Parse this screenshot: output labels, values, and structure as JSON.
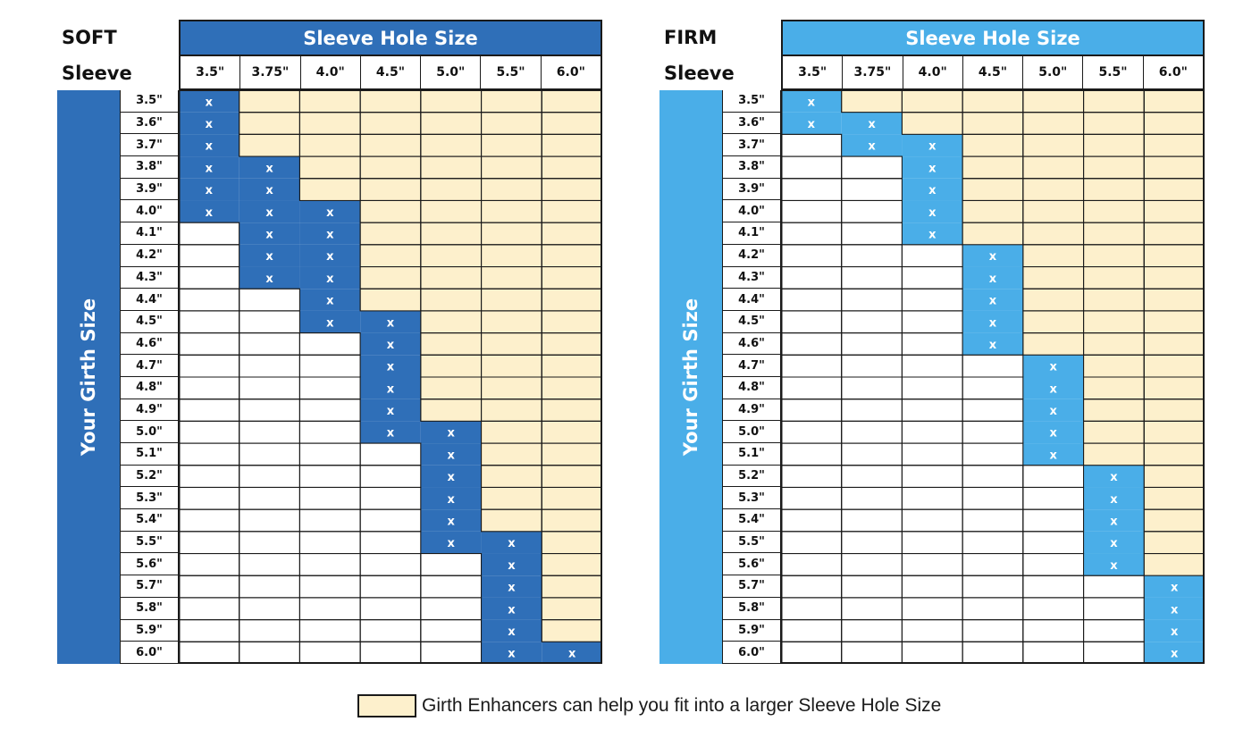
{
  "chart_data": [
    {
      "type": "table",
      "id": "soft",
      "title_line1": "SOFT",
      "title_line2": "Sleeve",
      "column_header": "Sleeve Hole Size",
      "row_header": "Your Girth Size",
      "columns": [
        "3.5\"",
        "3.75\"",
        "4.0\"",
        "4.5\"",
        "5.0\"",
        "5.5\"",
        "6.0\""
      ],
      "rows": [
        "3.5\"",
        "3.6\"",
        "3.7\"",
        "3.8\"",
        "3.9\"",
        "4.0\"",
        "4.1\"",
        "4.2\"",
        "4.3\"",
        "4.4\"",
        "4.5\"",
        "4.6\"",
        "4.7\"",
        "4.8\"",
        "4.9\"",
        "5.0\"",
        "5.1\"",
        "5.2\"",
        "5.3\"",
        "5.4\"",
        "5.5\"",
        "5.6\"",
        "5.7\"",
        "5.8\"",
        "5.9\"",
        "6.0\""
      ],
      "accent": "#2f6fb8",
      "fit_marks": [
        [
          0
        ],
        [
          0
        ],
        [
          0
        ],
        [
          0,
          1
        ],
        [
          0,
          1
        ],
        [
          0,
          1,
          2
        ],
        [
          1,
          2
        ],
        [
          1,
          2
        ],
        [
          1,
          2
        ],
        [
          2
        ],
        [
          2,
          3
        ],
        [
          3
        ],
        [
          3
        ],
        [
          3
        ],
        [
          3
        ],
        [
          3,
          4
        ],
        [
          4
        ],
        [
          4
        ],
        [
          4
        ],
        [
          4
        ],
        [
          4,
          5
        ],
        [
          5
        ],
        [
          5
        ],
        [
          5
        ],
        [
          5
        ],
        [
          5,
          6
        ]
      ],
      "enhancer_cells": [
        [
          1,
          2,
          3,
          4,
          5,
          6
        ],
        [
          1,
          2,
          3,
          4,
          5,
          6
        ],
        [
          1,
          2,
          3,
          4,
          5,
          6
        ],
        [
          2,
          3,
          4,
          5,
          6
        ],
        [
          2,
          3,
          4,
          5,
          6
        ],
        [
          3,
          4,
          5,
          6
        ],
        [
          3,
          4,
          5,
          6
        ],
        [
          3,
          4,
          5,
          6
        ],
        [
          3,
          4,
          5,
          6
        ],
        [
          3,
          4,
          5,
          6
        ],
        [
          4,
          5,
          6
        ],
        [
          4,
          5,
          6
        ],
        [
          4,
          5,
          6
        ],
        [
          4,
          5,
          6
        ],
        [
          4,
          5,
          6
        ],
        [
          5,
          6
        ],
        [
          5,
          6
        ],
        [
          5,
          6
        ],
        [
          5,
          6
        ],
        [
          5,
          6
        ],
        [
          6
        ],
        [
          6
        ],
        [
          6
        ],
        [
          6
        ],
        [
          6
        ],
        []
      ]
    },
    {
      "type": "table",
      "id": "firm",
      "title_line1": "FIRM",
      "title_line2": "Sleeve",
      "column_header": "Sleeve Hole Size",
      "row_header": "Your Girth Size",
      "columns": [
        "3.5\"",
        "3.75\"",
        "4.0\"",
        "4.5\"",
        "5.0\"",
        "5.5\"",
        "6.0\""
      ],
      "rows": [
        "3.5\"",
        "3.6\"",
        "3.7\"",
        "3.8\"",
        "3.9\"",
        "4.0\"",
        "4.1\"",
        "4.2\"",
        "4.3\"",
        "4.4\"",
        "4.5\"",
        "4.6\"",
        "4.7\"",
        "4.8\"",
        "4.9\"",
        "5.0\"",
        "5.1\"",
        "5.2\"",
        "5.3\"",
        "5.4\"",
        "5.5\"",
        "5.6\"",
        "5.7\"",
        "5.8\"",
        "5.9\"",
        "6.0\""
      ],
      "accent": "#4aaee8",
      "fit_marks": [
        [
          0
        ],
        [
          0,
          1
        ],
        [
          1,
          2
        ],
        [
          2
        ],
        [
          2
        ],
        [
          2
        ],
        [
          2
        ],
        [
          3
        ],
        [
          3
        ],
        [
          3
        ],
        [
          3
        ],
        [
          3
        ],
        [
          4
        ],
        [
          4
        ],
        [
          4
        ],
        [
          4
        ],
        [
          4
        ],
        [
          5
        ],
        [
          5
        ],
        [
          5
        ],
        [
          5
        ],
        [
          5
        ],
        [
          6
        ],
        [
          6
        ],
        [
          6
        ],
        [
          6
        ]
      ],
      "enhancer_cells": [
        [
          1,
          2,
          3,
          4,
          5,
          6
        ],
        [
          2,
          3,
          4,
          5,
          6
        ],
        [
          3,
          4,
          5,
          6
        ],
        [
          3,
          4,
          5,
          6
        ],
        [
          3,
          4,
          5,
          6
        ],
        [
          3,
          4,
          5,
          6
        ],
        [
          3,
          4,
          5,
          6
        ],
        [
          4,
          5,
          6
        ],
        [
          4,
          5,
          6
        ],
        [
          4,
          5,
          6
        ],
        [
          4,
          5,
          6
        ],
        [
          4,
          5,
          6
        ],
        [
          5,
          6
        ],
        [
          5,
          6
        ],
        [
          5,
          6
        ],
        [
          5,
          6
        ],
        [
          5,
          6
        ],
        [
          6
        ],
        [
          6
        ],
        [
          6
        ],
        [
          6
        ],
        [
          6
        ],
        [],
        [],
        [],
        []
      ]
    }
  ],
  "mark_symbol": "x",
  "legend": {
    "label": "Girth Enhancers can help you fit into a larger Sleeve Hole Size",
    "color": "#fdf0cc"
  }
}
